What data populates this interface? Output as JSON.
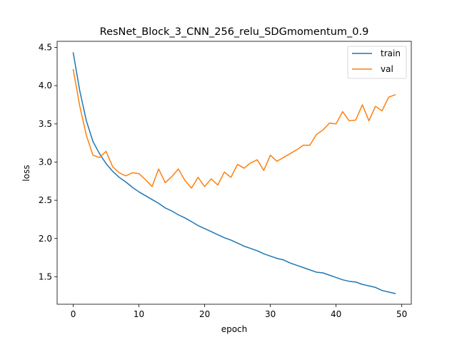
{
  "chart_data": {
    "type": "line",
    "title": "ResNet_Block_3_CNN_256_relu_SDGmomentum_0.9",
    "xlabel": "epoch",
    "ylabel": "loss",
    "xlim": [
      -2.45,
      51.45
    ],
    "ylim": [
      1.14,
      4.58
    ],
    "xticks": [
      0,
      10,
      20,
      30,
      40,
      50
    ],
    "yticks": [
      1.5,
      2.0,
      2.5,
      3.0,
      3.5,
      4.0,
      4.5
    ],
    "xtick_labels": [
      "0",
      "10",
      "20",
      "30",
      "40",
      "50"
    ],
    "ytick_labels": [
      "1.5",
      "2.0",
      "2.5",
      "3.0",
      "3.5",
      "4.0",
      "4.5"
    ],
    "grid": false,
    "legend_position": "top-right",
    "x": [
      0,
      1,
      2,
      3,
      4,
      5,
      6,
      7,
      8,
      9,
      10,
      11,
      12,
      13,
      14,
      15,
      16,
      17,
      18,
      19,
      20,
      21,
      22,
      23,
      24,
      25,
      26,
      27,
      28,
      29,
      30,
      31,
      32,
      33,
      34,
      35,
      36,
      37,
      38,
      39,
      40,
      41,
      42,
      43,
      44,
      45,
      46,
      47,
      48,
      49
    ],
    "series": [
      {
        "name": "train",
        "color": "#1f77b4",
        "values": [
          4.43,
          3.93,
          3.54,
          3.27,
          3.11,
          2.98,
          2.88,
          2.8,
          2.74,
          2.67,
          2.61,
          2.56,
          2.51,
          2.46,
          2.4,
          2.36,
          2.31,
          2.27,
          2.22,
          2.17,
          2.13,
          2.09,
          2.05,
          2.01,
          1.98,
          1.94,
          1.9,
          1.87,
          1.84,
          1.8,
          1.77,
          1.74,
          1.72,
          1.68,
          1.65,
          1.62,
          1.59,
          1.56,
          1.55,
          1.52,
          1.49,
          1.46,
          1.44,
          1.43,
          1.4,
          1.38,
          1.36,
          1.32,
          1.3,
          1.28
        ]
      },
      {
        "name": "val",
        "color": "#ff7f0e",
        "values": [
          4.21,
          3.73,
          3.35,
          3.09,
          3.06,
          3.14,
          2.94,
          2.86,
          2.82,
          2.86,
          2.85,
          2.77,
          2.68,
          2.91,
          2.73,
          2.81,
          2.91,
          2.76,
          2.66,
          2.8,
          2.68,
          2.78,
          2.7,
          2.87,
          2.8,
          2.97,
          2.92,
          2.99,
          3.03,
          2.89,
          3.09,
          3.01,
          3.06,
          3.11,
          3.16,
          3.22,
          3.22,
          3.36,
          3.42,
          3.51,
          3.5,
          3.66,
          3.54,
          3.55,
          3.75,
          3.54,
          3.73,
          3.67,
          3.85,
          3.88
        ]
      }
    ]
  }
}
